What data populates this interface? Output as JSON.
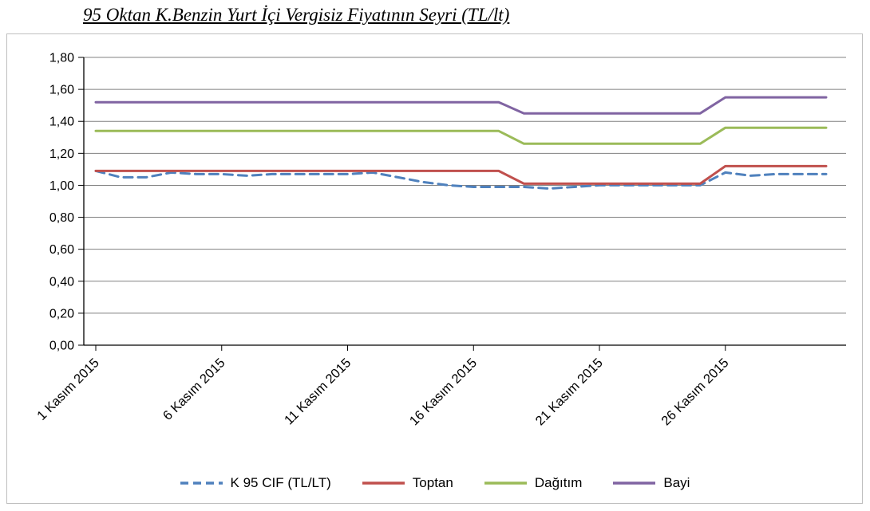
{
  "chart_data": {
    "type": "line",
    "title": "95 Oktan K.Benzin Yurt İçi Vergisiz Fiyatının Seyri (TL/lt)",
    "x_unit": "Kasım 2015 (day of month)",
    "x": [
      1,
      2,
      3,
      4,
      5,
      6,
      7,
      8,
      9,
      10,
      11,
      12,
      13,
      14,
      15,
      16,
      17,
      18,
      19,
      20,
      21,
      22,
      23,
      24,
      25,
      26,
      27,
      28,
      29,
      30
    ],
    "x_tick_days": [
      1,
      6,
      11,
      16,
      21,
      26
    ],
    "x_tick_labels": [
      "1 Kasım 2015",
      "6 Kasım 2015",
      "11 Kasım 2015",
      "16 Kasım 2015",
      "21 Kasım 2015",
      "26 Kasım 2015"
    ],
    "ylim": [
      0.0,
      1.8
    ],
    "y_tick_step": 0.2,
    "y_tick_labels": [
      "0,00",
      "0,20",
      "0,40",
      "0,60",
      "0,80",
      "1,00",
      "1,20",
      "1,40",
      "1,60",
      "1,80"
    ],
    "grid": true,
    "legend_position": "bottom",
    "series": [
      {
        "name": "K 95 CIF (TL/LT)",
        "color": "#4F81BD",
        "dash": true,
        "values": [
          1.09,
          1.05,
          1.05,
          1.08,
          1.07,
          1.07,
          1.06,
          1.07,
          1.07,
          1.07,
          1.07,
          1.08,
          1.05,
          1.02,
          1.0,
          0.99,
          0.99,
          0.99,
          0.98,
          0.99,
          1.0,
          1.0,
          1.0,
          1.0,
          1.0,
          1.08,
          1.06,
          1.07,
          1.07,
          1.07
        ]
      },
      {
        "name": "Toptan",
        "color": "#C0504D",
        "dash": false,
        "values": [
          1.09,
          1.09,
          1.09,
          1.09,
          1.09,
          1.09,
          1.09,
          1.09,
          1.09,
          1.09,
          1.09,
          1.09,
          1.09,
          1.09,
          1.09,
          1.09,
          1.09,
          1.01,
          1.01,
          1.01,
          1.01,
          1.01,
          1.01,
          1.01,
          1.01,
          1.12,
          1.12,
          1.12,
          1.12,
          1.12
        ]
      },
      {
        "name": "Dağıtım",
        "color": "#9BBB59",
        "dash": false,
        "values": [
          1.34,
          1.34,
          1.34,
          1.34,
          1.34,
          1.34,
          1.34,
          1.34,
          1.34,
          1.34,
          1.34,
          1.34,
          1.34,
          1.34,
          1.34,
          1.34,
          1.34,
          1.26,
          1.26,
          1.26,
          1.26,
          1.26,
          1.26,
          1.26,
          1.26,
          1.36,
          1.36,
          1.36,
          1.36,
          1.36
        ]
      },
      {
        "name": "Bayi",
        "color": "#8064A2",
        "dash": false,
        "values": [
          1.52,
          1.52,
          1.52,
          1.52,
          1.52,
          1.52,
          1.52,
          1.52,
          1.52,
          1.52,
          1.52,
          1.52,
          1.52,
          1.52,
          1.52,
          1.52,
          1.52,
          1.45,
          1.45,
          1.45,
          1.45,
          1.45,
          1.45,
          1.45,
          1.45,
          1.55,
          1.55,
          1.55,
          1.55,
          1.55
        ]
      }
    ],
    "colors": {
      "grid": "#808080",
      "axis": "#000000",
      "frame_border": "#bfbfbf"
    }
  }
}
